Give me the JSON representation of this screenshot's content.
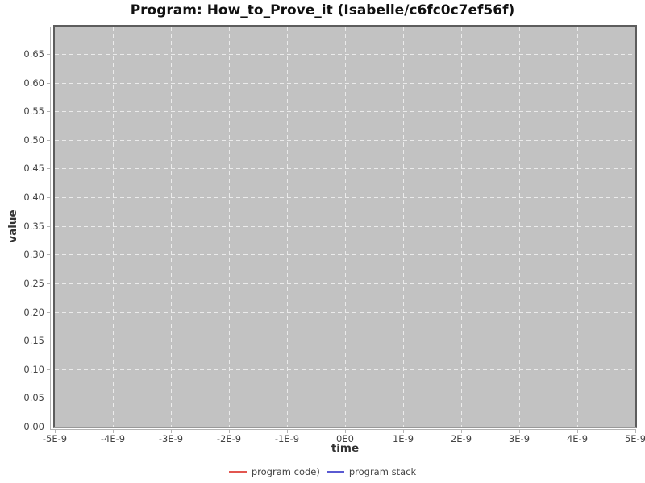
{
  "header": {
    "title": "Program: How_to_Prove_it (Isabelle/c6fc0c7ef56f)"
  },
  "chart_data": {
    "type": "line",
    "title": "Program: How_to_Prove_it (Isabelle/c6fc0c7ef56f)",
    "xlabel": "time",
    "ylabel": "value",
    "x_tick_labels": [
      "-5E-9",
      "-4E-9",
      "-3E-9",
      "-2E-9",
      "-1E-9",
      "0E0",
      "1E-9",
      "2E-9",
      "3E-9",
      "4E-9",
      "5E-9"
    ],
    "y_tick_labels": [
      "0.00",
      "0.05",
      "0.10",
      "0.15",
      "0.20",
      "0.25",
      "0.30",
      "0.35",
      "0.40",
      "0.45",
      "0.50",
      "0.55",
      "0.60",
      "0.65"
    ],
    "xlim_labels": [
      "-5E-9",
      "5E-9"
    ],
    "ylim": [
      0.0,
      0.695
    ],
    "grid": true,
    "grid_style": "dashed-white",
    "plot_background": "#c2c2c2",
    "gridline_color": "#ebebeb",
    "legend_position": "bottom-center",
    "series": [
      {
        "name": "program code)",
        "color": "#e25650",
        "points": []
      },
      {
        "name": "program stack",
        "color": "#5a5ad2",
        "points": []
      }
    ]
  }
}
